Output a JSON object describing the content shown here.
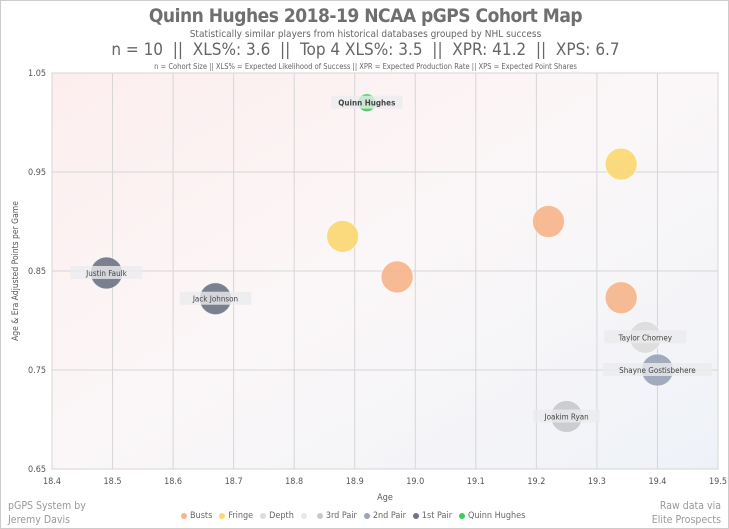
{
  "chart_data": {
    "type": "scatter",
    "title": "Quinn Hughes 2018-19 NCAA pGPS Cohort Map",
    "subtitle": "Statistically similar players from historical databases grouped by NHL success",
    "stats_line": "n = 10  ||  XLS%: 3.6  ||  Top 4 XLS%: 3.5  ||  XPR: 41.2  ||  XPS: 6.7",
    "definitions": "n = Cohort Size || XLS% = Expected Likelihood of Success || XPR = Expected Production Rate || XPS = Expected Point Shares",
    "xlabel": "Age",
    "ylabel": "Age & Era Adjusted Points per Game",
    "xlim": [
      18.4,
      19.5
    ],
    "ylim": [
      0.65,
      1.05
    ],
    "xticks": [
      "18.4",
      "18.5",
      "18.6",
      "18.7",
      "18.8",
      "18.9",
      "19.0",
      "19.1",
      "19.2",
      "19.3",
      "19.4",
      "19.5"
    ],
    "yticks": [
      "0.65",
      "0.75",
      "0.85",
      "0.95",
      "1.05"
    ],
    "legend": [
      {
        "name": "Busts",
        "color": "#f7b48a"
      },
      {
        "name": "Fringe",
        "color": "#fbd870"
      },
      {
        "name": "Depth",
        "color": "#dcdcdc"
      },
      {
        "name": "",
        "color": "#e8e8ea"
      },
      {
        "name": "3rd Pair",
        "color": "#c8c9cc"
      },
      {
        "name": "2nd Pair",
        "color": "#9aa3b8"
      },
      {
        "name": "1st Pair",
        "color": "#6e7486"
      },
      {
        "name": "Quinn Hughes",
        "color": "#3ccc5a"
      }
    ],
    "points": [
      {
        "x": 18.92,
        "y": 1.02,
        "group": "Quinn Hughes",
        "label": "Quinn Hughes"
      },
      {
        "x": 18.49,
        "y": 0.848,
        "group": "1st Pair",
        "label": "Justin Faulk"
      },
      {
        "x": 18.67,
        "y": 0.822,
        "group": "1st Pair",
        "label": "Jack Johnson"
      },
      {
        "x": 18.88,
        "y": 0.885,
        "group": "Fringe",
        "label": ""
      },
      {
        "x": 19.34,
        "y": 0.958,
        "group": "Fringe",
        "label": ""
      },
      {
        "x": 18.97,
        "y": 0.844,
        "group": "Busts",
        "label": ""
      },
      {
        "x": 19.22,
        "y": 0.9,
        "group": "Busts",
        "label": ""
      },
      {
        "x": 19.34,
        "y": 0.823,
        "group": "Busts",
        "label": ""
      },
      {
        "x": 19.38,
        "y": 0.783,
        "group": "Depth",
        "label": "Taylor Chorney"
      },
      {
        "x": 19.4,
        "y": 0.75,
        "group": "2nd Pair",
        "label": "Shayne Gostisbehere"
      },
      {
        "x": 19.25,
        "y": 0.703,
        "group": "3rd Pair",
        "label": "Joakim Ryan"
      }
    ]
  },
  "footer": {
    "left1": "pGPS System by",
    "left2": "Jeremy Davis",
    "right1": "Raw data via",
    "right2": "Elite Prospects"
  }
}
